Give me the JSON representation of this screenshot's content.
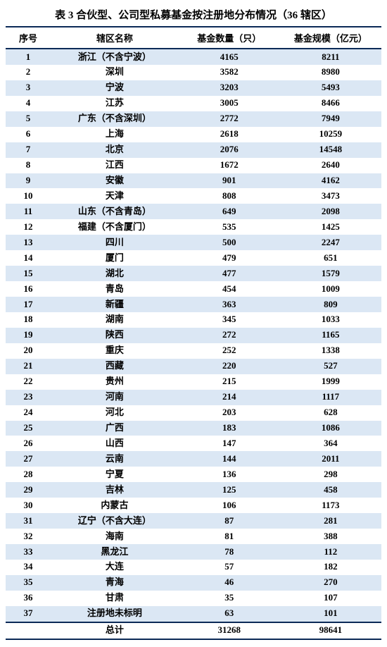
{
  "title": "表 3 合伙型、公司型私募基金按注册地分布情况（36 辖区）",
  "columns": [
    "序号",
    "辖区名称",
    "基金数量（只）",
    "基金规模（亿元）"
  ],
  "rows": [
    [
      "1",
      "浙江（不含宁波）",
      "4165",
      "8211"
    ],
    [
      "2",
      "深圳",
      "3582",
      "8980"
    ],
    [
      "3",
      "宁波",
      "3203",
      "5493"
    ],
    [
      "4",
      "江苏",
      "3005",
      "8466"
    ],
    [
      "5",
      "广东（不含深圳）",
      "2772",
      "7949"
    ],
    [
      "6",
      "上海",
      "2618",
      "10259"
    ],
    [
      "7",
      "北京",
      "2076",
      "14548"
    ],
    [
      "8",
      "江西",
      "1672",
      "2640"
    ],
    [
      "9",
      "安徽",
      "901",
      "4162"
    ],
    [
      "10",
      "天津",
      "808",
      "3473"
    ],
    [
      "11",
      "山东（不含青岛）",
      "649",
      "2098"
    ],
    [
      "12",
      "福建（不含厦门）",
      "535",
      "1425"
    ],
    [
      "13",
      "四川",
      "500",
      "2247"
    ],
    [
      "14",
      "厦门",
      "479",
      "651"
    ],
    [
      "15",
      "湖北",
      "477",
      "1579"
    ],
    [
      "16",
      "青岛",
      "454",
      "1009"
    ],
    [
      "17",
      "新疆",
      "363",
      "809"
    ],
    [
      "18",
      "湖南",
      "345",
      "1033"
    ],
    [
      "19",
      "陕西",
      "272",
      "1165"
    ],
    [
      "20",
      "重庆",
      "252",
      "1338"
    ],
    [
      "21",
      "西藏",
      "220",
      "527"
    ],
    [
      "22",
      "贵州",
      "215",
      "1999"
    ],
    [
      "23",
      "河南",
      "214",
      "1117"
    ],
    [
      "24",
      "河北",
      "203",
      "628"
    ],
    [
      "25",
      "广西",
      "183",
      "1086"
    ],
    [
      "26",
      "山西",
      "147",
      "364"
    ],
    [
      "27",
      "云南",
      "144",
      "2011"
    ],
    [
      "28",
      "宁夏",
      "136",
      "298"
    ],
    [
      "29",
      "吉林",
      "125",
      "458"
    ],
    [
      "30",
      "内蒙古",
      "106",
      "1173"
    ],
    [
      "31",
      "辽宁（不含大连）",
      "87",
      "281"
    ],
    [
      "32",
      "海南",
      "81",
      "388"
    ],
    [
      "33",
      "黑龙江",
      "78",
      "112"
    ],
    [
      "34",
      "大连",
      "57",
      "182"
    ],
    [
      "35",
      "青海",
      "46",
      "270"
    ],
    [
      "36",
      "甘肃",
      "35",
      "107"
    ],
    [
      "37",
      "注册地未标明",
      "63",
      "101"
    ]
  ],
  "total": [
    "",
    "总计",
    "31268",
    "98641"
  ],
  "style": {
    "row_odd_bg": "#dbe7f4",
    "row_even_bg": "#ffffff",
    "border_color": "#0b2a57",
    "text_color": "#000000",
    "font_size_body": 13,
    "font_size_title": 15,
    "col_widths_pct": [
      12,
      34,
      27,
      27
    ]
  }
}
